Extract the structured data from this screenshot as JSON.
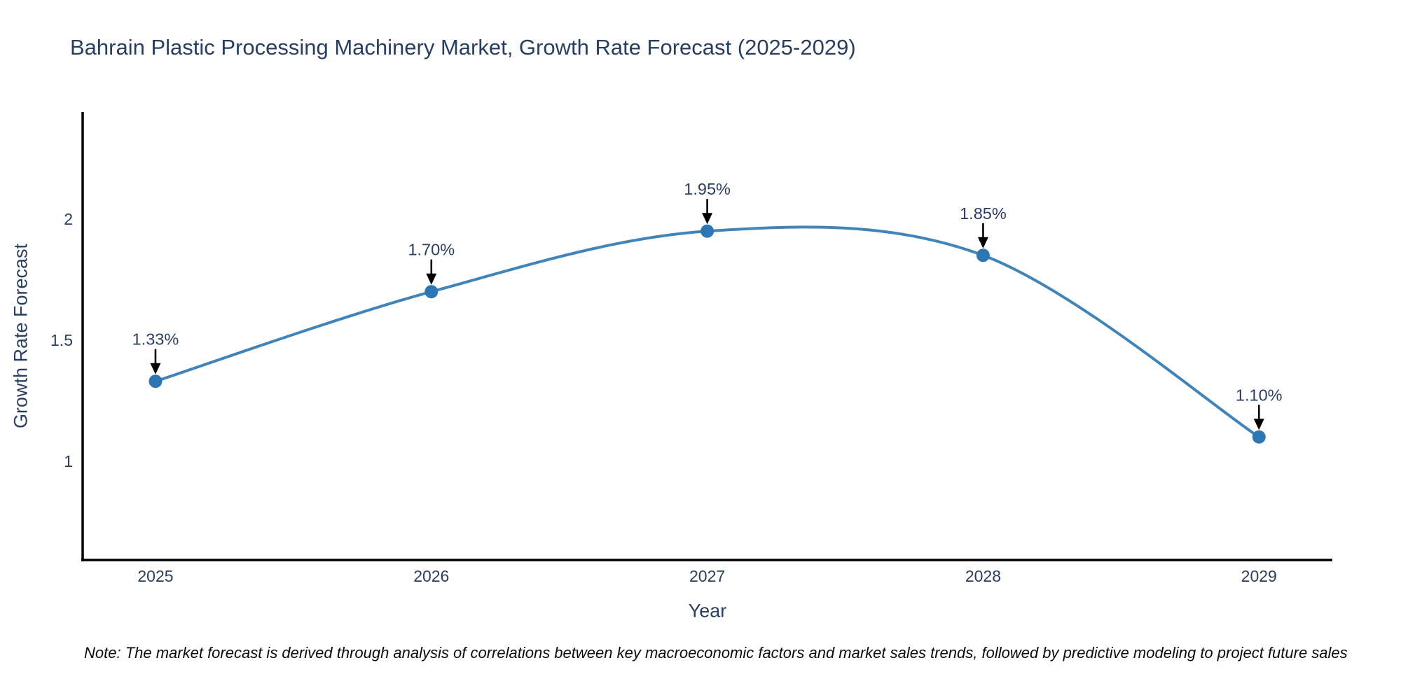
{
  "title": "Bahrain Plastic Processing Machinery Market, Growth Rate Forecast (2025-2029)",
  "note": "Note: The market forecast is derived through analysis of correlations between key macroeconomic factors and market sales trends, followed by predictive modeling to project future sales",
  "chart_data": {
    "type": "line",
    "line_shape": "spline",
    "title": "Bahrain Plastic Processing Machinery Market, Growth Rate Forecast (2025-2029)",
    "xlabel": "Year",
    "ylabel": "Growth Rate Forecast",
    "categories": [
      2025,
      2026,
      2027,
      2028,
      2029
    ],
    "values": [
      1.33,
      1.7,
      1.95,
      1.85,
      1.1
    ],
    "point_labels": [
      "1.33%",
      "1.70%",
      "1.95%",
      "1.85%",
      "1.10%"
    ],
    "xticks": [
      "2025",
      "2026",
      "2027",
      "2028",
      "2029"
    ],
    "yticks": [
      1,
      1.5,
      2
    ],
    "ytick_labels": [
      "1",
      "1.5",
      "2"
    ],
    "x_range": [
      2024.736,
      2029.266
    ],
    "y_range": [
      0.592,
      2.442
    ],
    "grid": false,
    "legend_position": "none",
    "annotations_have_arrows": true,
    "colors": {
      "line": "#4184b8",
      "marker": "#2d76b4",
      "axis_line": "#000000",
      "tick_text": "#2a3f5f",
      "annotation_text": "#2a3f5f",
      "annotation_arrow": "#000000",
      "background": "#ffffff"
    }
  }
}
